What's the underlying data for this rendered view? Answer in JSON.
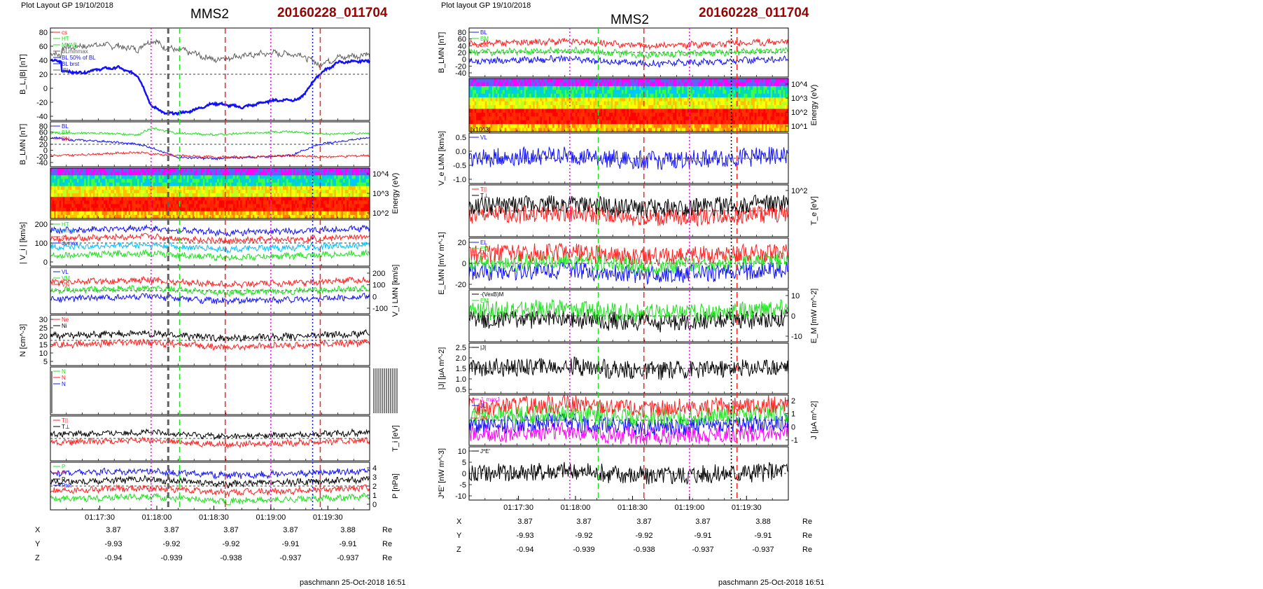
{
  "colors": {
    "red": "#ff2020",
    "green": "#20e020",
    "blue": "#1010ff",
    "black": "#000000",
    "gray": "#606060",
    "magenta": "#ff00ff",
    "cyan": "#00c0ff",
    "darkred": "#990000"
  },
  "left": {
    "header": "Plot Layout GP 19/10/2018",
    "spacecraft": "MMS2",
    "event": "20160228_011704",
    "footer": "paschmann 25-Oct-2018 16:51",
    "time_ticks": [
      "01:17:30",
      "01:18:00",
      "01:18:30",
      "01:19:00",
      "01:19:30"
    ],
    "markers": [
      {
        "t": "01:17:57",
        "color": "magenta",
        "style": "dotted"
      },
      {
        "t": "01:18:06",
        "color": "gray",
        "style": "dashed"
      },
      {
        "t": "01:18:12",
        "color": "green",
        "style": "dashed"
      },
      {
        "t": "01:18:36",
        "color": "red",
        "style": "dashed"
      },
      {
        "t": "01:19:00",
        "color": "magenta",
        "style": "dotted"
      },
      {
        "t": "01:19:22",
        "color": "blue",
        "style": "dotted"
      },
      {
        "t": "01:19:26",
        "color": "red",
        "style": "dashed"
      }
    ],
    "panels": [
      {
        "ylabel": "B_L,|B| [nT]",
        "ticks_left": [
          "80",
          "60",
          "40",
          "20",
          "0",
          "-20",
          "-40"
        ],
        "ticks_right": [],
        "legend": [
          {
            "text": "cs",
            "color": "red"
          },
          {
            "text": "HT",
            "color": "green"
          },
          {
            "text": "MVAB",
            "color": "green"
          },
          {
            "text": "BLminmax",
            "color": "gray"
          },
          {
            "text": "BL 50% of BL",
            "color": "blue"
          },
          {
            "text": "BL brst",
            "color": "blue"
          },
          {
            "text": "|B|",
            "color": "gray"
          }
        ]
      },
      {
        "ylabel": "B_LMN [nT]",
        "ticks_left": [
          "80",
          "60",
          "40",
          "20",
          "0",
          "-20",
          "-40"
        ],
        "ticks_right": [],
        "legend": [
          {
            "text": "BL",
            "color": "blue"
          },
          {
            "text": "BM",
            "color": "green"
          },
          {
            "text": "BN",
            "color": "red"
          }
        ]
      },
      {
        "ylabel": "Energy (eV)",
        "ticks_left": [],
        "ticks_right": [
          "10^4",
          "10^3",
          "10^2"
        ],
        "legend": []
      },
      {
        "ylabel": "| V_i | [km/s]",
        "ticks_left": [
          "200",
          "100",
          "0"
        ],
        "ticks_right": [],
        "legend": [
          {
            "text": "HT",
            "color": "green"
          },
          {
            "text": "vmax",
            "color": "cyan"
          },
          {
            "text": "cs",
            "color": "red"
          },
          {
            "text": "dvmax",
            "color": "blue"
          }
        ]
      },
      {
        "ylabel": "V_i LMN [km/s]",
        "ticks_left": [],
        "ticks_right": [
          "200",
          "100",
          "0",
          "-100"
        ],
        "legend": [
          {
            "text": "VL",
            "color": "blue"
          },
          {
            "text": "VM",
            "color": "green"
          },
          {
            "text": "VN",
            "color": "red"
          }
        ]
      },
      {
        "ylabel": "N [cm^-3]",
        "ticks_left": [
          "30",
          "25",
          "20",
          "15",
          "10",
          "5"
        ],
        "ticks_right": [],
        "legend": [
          {
            "text": "Ne",
            "color": "red"
          },
          {
            "text": "Ni",
            "color": "black"
          }
        ]
      },
      {
        "ylabel": "",
        "ticks_left": [],
        "ticks_right": [],
        "legend": [
          {
            "text": "N",
            "color": "green"
          },
          {
            "text": "N",
            "color": "red"
          },
          {
            "text": "N",
            "color": "blue"
          }
        ]
      },
      {
        "ylabel": "T_i [eV]",
        "ticks_left": [],
        "ticks_right": [],
        "legend": [
          {
            "text": "T||",
            "color": "red"
          },
          {
            "text": "T⊥",
            "color": "black"
          }
        ]
      },
      {
        "ylabel": "P [nPa]",
        "ticks_left": [],
        "ticks_right": [
          "4",
          "3",
          "2",
          "1",
          "0"
        ],
        "legend": [
          {
            "text": "P",
            "color": "green"
          },
          {
            "text": "P",
            "color": "red"
          },
          {
            "text": "P",
            "color": "black"
          },
          {
            "text": "Ptot",
            "color": "blue"
          }
        ]
      }
    ],
    "position": {
      "labels": [
        "X",
        "Y",
        "Z"
      ],
      "unit": "Re",
      "rows": [
        [
          "3.87",
          "3.87",
          "3.87",
          "3.87",
          "3.88"
        ],
        [
          "-9.93",
          "-9.92",
          "-9.92",
          "-9.91",
          "-9.91"
        ],
        [
          "-0.94",
          "-0.939",
          "-0.938",
          "-0.937",
          "-0.937"
        ]
      ]
    }
  },
  "right": {
    "header": "Plot layout GP 19/10/2018",
    "spacecraft": "MMS2",
    "event": "20160228_011704",
    "footer": "paschmann 25-Oct-2018 16:51",
    "time_ticks": [
      "01:17:30",
      "01:18:00",
      "01:18:30",
      "01:19:00",
      "01:19:30"
    ],
    "markers": [
      {
        "t": "01:17:57",
        "color": "magenta",
        "style": "dotted"
      },
      {
        "t": "01:18:12",
        "color": "green",
        "style": "dashed"
      },
      {
        "t": "01:18:36",
        "color": "red",
        "style": "dashed"
      },
      {
        "t": "01:19:00",
        "color": "magenta",
        "style": "dotted"
      },
      {
        "t": "01:19:22",
        "color": "black",
        "style": "dotted"
      },
      {
        "t": "01:19:25",
        "color": "red",
        "style": "dashed"
      }
    ],
    "panels": [
      {
        "ylabel": "B_LMN [nT]",
        "ticks_left": [
          "80",
          "60",
          "40",
          "20",
          "0",
          "-20",
          "-40"
        ],
        "ticks_right": [],
        "legend": [
          {
            "text": "BL",
            "color": "blue"
          },
          {
            "text": "BM",
            "color": "green"
          },
          {
            "text": "BN",
            "color": "red"
          }
        ]
      },
      {
        "ylabel": "Energy (eV)",
        "ticks_left": [],
        "ticks_right": [
          "10^4",
          "10^3",
          "10^2",
          "10^1"
        ],
        "legend": []
      },
      {
        "ylabel": "V_e LMN [km/s]",
        "ticks_left": [
          "0.5",
          "0.0",
          "-0.5",
          "-1.0"
        ],
        "ticks_right": [],
        "scale": "[x10^3]",
        "legend": [
          {
            "text": "VL",
            "color": "blue"
          }
        ]
      },
      {
        "ylabel": "T_e [eV]",
        "ticks_left": [],
        "ticks_right": [
          "10^2"
        ],
        "legend": [
          {
            "text": "T||",
            "color": "red"
          },
          {
            "text": "T⊥",
            "color": "black"
          }
        ]
      },
      {
        "ylabel": "E_LMN [mV m^-1]",
        "ticks_left": [
          "20",
          "0",
          "-20"
        ],
        "ticks_right": [],
        "legend": [
          {
            "text": "EL",
            "color": "blue"
          },
          {
            "text": "EM",
            "color": "green"
          },
          {
            "text": "EN",
            "color": "red"
          }
        ]
      },
      {
        "ylabel": "E_M [mW m^-2]",
        "ticks_left": [],
        "ticks_right": [
          "10",
          "0",
          "-10"
        ],
        "legend": [
          {
            "text": "-(VexB)M",
            "color": "black"
          },
          {
            "text": "EM",
            "color": "green"
          }
        ]
      },
      {
        "ylabel": "|J| [μA m^-2]",
        "ticks_left": [
          "2.5",
          "2.0",
          "1.5",
          "1.0",
          "0.5"
        ],
        "ticks_right": [],
        "legend": [
          {
            "text": "|J|",
            "color": "black"
          }
        ]
      },
      {
        "ylabel": "J [μA m^-2]",
        "ticks_left": [],
        "ticks_right": [
          "2",
          "1",
          "0",
          "-1"
        ],
        "legend": [
          {
            "text": "J_maxJ",
            "color": "magenta"
          },
          {
            "text": "JL",
            "color": "blue"
          },
          {
            "text": "JM",
            "color": "green"
          },
          {
            "text": "JN",
            "color": "red"
          }
        ]
      },
      {
        "ylabel": "J*E' [nW m^-3]",
        "ticks_left": [
          "10",
          "5",
          "0",
          "-5",
          "-10"
        ],
        "ticks_right": [],
        "legend": [
          {
            "text": "J*E'",
            "color": "black"
          }
        ]
      }
    ],
    "position": {
      "labels": [
        "X",
        "Y",
        "Z"
      ],
      "unit": "Re",
      "rows": [
        [
          "3.87",
          "3.87",
          "3.87",
          "3.87",
          "3.88"
        ],
        [
          "-9.93",
          "-9.92",
          "-9.92",
          "-9.91",
          "-9.91"
        ],
        [
          "-0.94",
          "-0.939",
          "-0.938",
          "-0.937",
          "-0.937"
        ]
      ]
    }
  },
  "chart_data": [
    {
      "type": "line",
      "title": "MMS2 20160228_011704",
      "xlabel": "",
      "ylabel": "B_L,|B| [nT]",
      "ylim": [
        -50,
        90
      ],
      "x": [
        "01:17:10",
        "01:17:20",
        "01:17:30",
        "01:17:40",
        "01:17:50",
        "01:17:57",
        "01:18:05",
        "01:18:15",
        "01:18:30",
        "01:18:45",
        "01:19:00",
        "01:19:15",
        "01:19:25",
        "01:19:35",
        "01:19:50"
      ],
      "series": [
        {
          "name": "BL brst",
          "values": [
            25,
            22,
            28,
            30,
            18,
            -28,
            -40,
            -38,
            -24,
            -30,
            -20,
            -18,
            20,
            38,
            40
          ]
        },
        {
          "name": "|B|",
          "values": [
            60,
            62,
            65,
            62,
            58,
            72,
            60,
            55,
            42,
            48,
            52,
            50,
            35,
            45,
            50
          ]
        }
      ]
    },
    {
      "type": "line",
      "title": "MMS2 20160228_011704",
      "xlabel": "",
      "ylabel": "B_LMN [nT]",
      "ylim": [
        -50,
        90
      ],
      "x": [
        "01:17:10",
        "01:17:30",
        "01:17:50",
        "01:17:57",
        "01:18:10",
        "01:18:30",
        "01:18:50",
        "01:19:10",
        "01:19:25",
        "01:19:50"
      ],
      "series": [
        {
          "name": "BL",
          "values": [
            35,
            30,
            20,
            10,
            -20,
            -25,
            -20,
            -15,
            20,
            40
          ]
        },
        {
          "name": "BM",
          "values": [
            55,
            55,
            50,
            70,
            55,
            50,
            55,
            60,
            52,
            55
          ]
        },
        {
          "name": "BN",
          "values": [
            -15,
            -10,
            -5,
            -10,
            -15,
            -20,
            -20,
            -15,
            -20,
            -15
          ]
        }
      ]
    }
  ]
}
